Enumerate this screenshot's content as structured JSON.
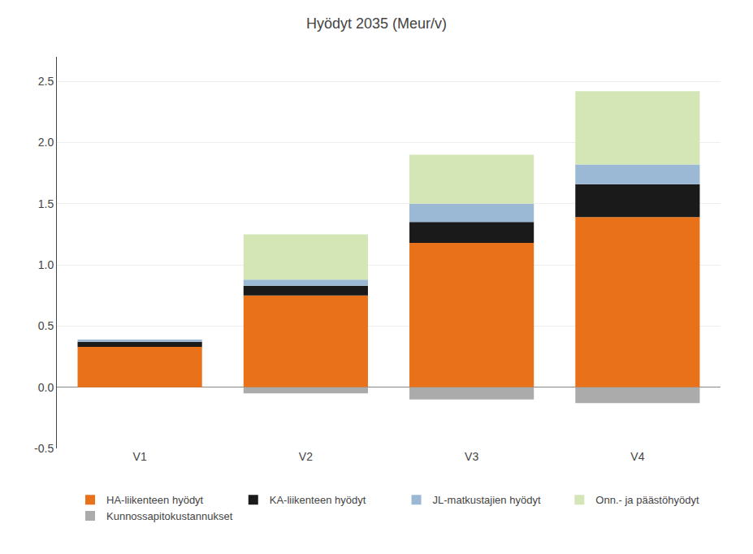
{
  "chart_data": {
    "type": "bar",
    "title": "Hyödyt 2035 (Meur/v)",
    "categories": [
      "V1",
      "V2",
      "V3",
      "V4"
    ],
    "stacked": true,
    "series": [
      {
        "name": "HA-liikenteen hyödyt",
        "color": "#E8711A",
        "values": [
          0.33,
          0.75,
          1.18,
          1.39
        ]
      },
      {
        "name": "KA-liikenteen hyödyt",
        "color": "#1A1A1A",
        "values": [
          0.04,
          0.08,
          0.17,
          0.27
        ]
      },
      {
        "name": "JL-matkustajien hyödyt",
        "color": "#9BB8D4",
        "values": [
          0.02,
          0.05,
          0.15,
          0.16
        ]
      },
      {
        "name": "Onn.- ja päästöhyödyt",
        "color": "#D4E6B5",
        "values": [
          0.0,
          0.37,
          0.4,
          0.6
        ]
      },
      {
        "name": "Kunnossapitokustannukset",
        "color": "#ABABAB",
        "values": [
          0.0,
          -0.05,
          -0.1,
          -0.13
        ]
      }
    ],
    "ylim": [
      -0.5,
      2.7
    ],
    "yticks": [
      -0.5,
      {
        "value": 0,
        "label": "0.0"
      },
      0.5,
      {
        "value": 1,
        "label": "1.0"
      },
      1.5,
      {
        "value": 2,
        "label": "2.0"
      },
      2.5
    ],
    "grid": true,
    "legend": "bottom"
  }
}
